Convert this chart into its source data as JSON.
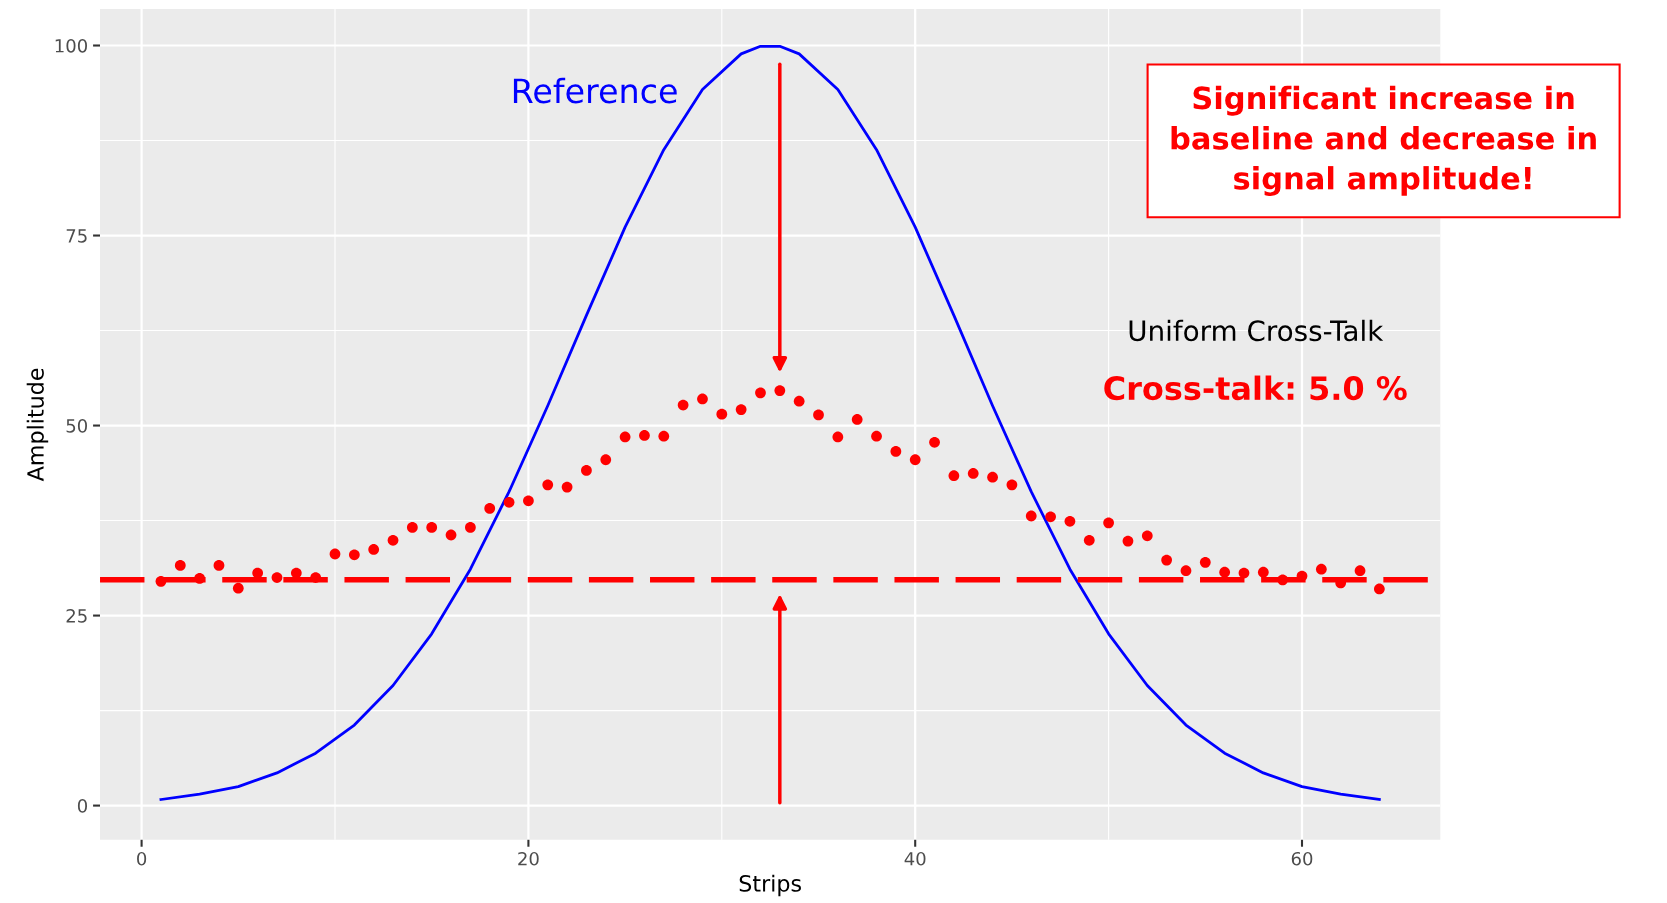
{
  "chart_data": {
    "type": "scatter",
    "xlabel": "Strips",
    "ylabel": "Amplitude",
    "xlim": [
      -2.15,
      67.15
    ],
    "ylim": [
      -4.5,
      104.8
    ],
    "xticks": [
      0,
      20,
      40,
      60
    ],
    "yticks": [
      0,
      25,
      50,
      75,
      100
    ],
    "grid": true,
    "series": [
      {
        "color": "#ff0000",
        "marker": "circle",
        "x": [
          1,
          2,
          3,
          4,
          5,
          6,
          7,
          8,
          9,
          10,
          11,
          12,
          13,
          14,
          15,
          16,
          17,
          18,
          19,
          20,
          21,
          22,
          23,
          24,
          25,
          26,
          27,
          28,
          29,
          30,
          31,
          32,
          33,
          34,
          35,
          36,
          37,
          38,
          39,
          40,
          41,
          42,
          43,
          44,
          45,
          46,
          47,
          48,
          49,
          50,
          51,
          52,
          53,
          54,
          55,
          56,
          57,
          58,
          59,
          60,
          61,
          62,
          63,
          64
        ],
        "values": [
          29.5,
          31.6,
          29.9,
          31.6,
          28.6,
          30.6,
          30.0,
          30.6,
          30.0,
          33.1,
          33.0,
          33.7,
          34.9,
          36.6,
          36.6,
          35.6,
          36.6,
          39.1,
          39.9,
          40.1,
          42.2,
          41.9,
          44.1,
          45.5,
          48.5,
          48.7,
          48.6,
          52.7,
          53.5,
          51.5,
          52.1,
          54.3,
          54.6,
          53.2,
          51.4,
          48.5,
          50.8,
          48.6,
          46.6,
          45.5,
          47.8,
          43.4,
          43.7,
          43.2,
          42.2,
          38.1,
          38.0,
          37.4,
          34.9,
          37.2,
          34.8,
          35.5,
          32.3,
          30.9,
          32.0,
          30.7,
          30.6,
          30.7,
          29.7,
          30.2,
          31.1,
          29.3,
          30.9,
          28.5
        ]
      },
      {
        "type": "line",
        "color": "#0000ff",
        "marker": "none",
        "x": [
          1,
          3,
          5,
          7,
          9,
          11,
          13,
          15,
          17,
          19,
          21,
          23,
          25,
          27,
          29,
          31,
          32,
          33,
          34,
          36,
          38,
          40,
          42,
          44,
          46,
          48,
          50,
          52,
          54,
          56,
          58,
          60,
          62,
          64
        ],
        "values": [
          0.8,
          1.5,
          2.5,
          4.3,
          6.9,
          10.6,
          15.8,
          22.6,
          31.1,
          41.3,
          52.6,
          64.5,
          76.1,
          86.3,
          94.2,
          98.9,
          99.9,
          99.9,
          98.9,
          94.2,
          86.3,
          76.1,
          64.5,
          52.6,
          41.3,
          31.1,
          22.6,
          15.8,
          10.6,
          6.9,
          4.3,
          2.5,
          1.5,
          0.8
        ]
      }
    ],
    "ref_lines": [
      {
        "axis": "y",
        "value": 29.7,
        "color": "#ff0000",
        "line_style": "dashed"
      }
    ],
    "annotations": [
      "Reference",
      "Significant increase in\nbaseline and decrease in\nsignal amplitude!",
      "Uniform Cross-Talk",
      "Cross-talk: 5.0 %"
    ]
  }
}
